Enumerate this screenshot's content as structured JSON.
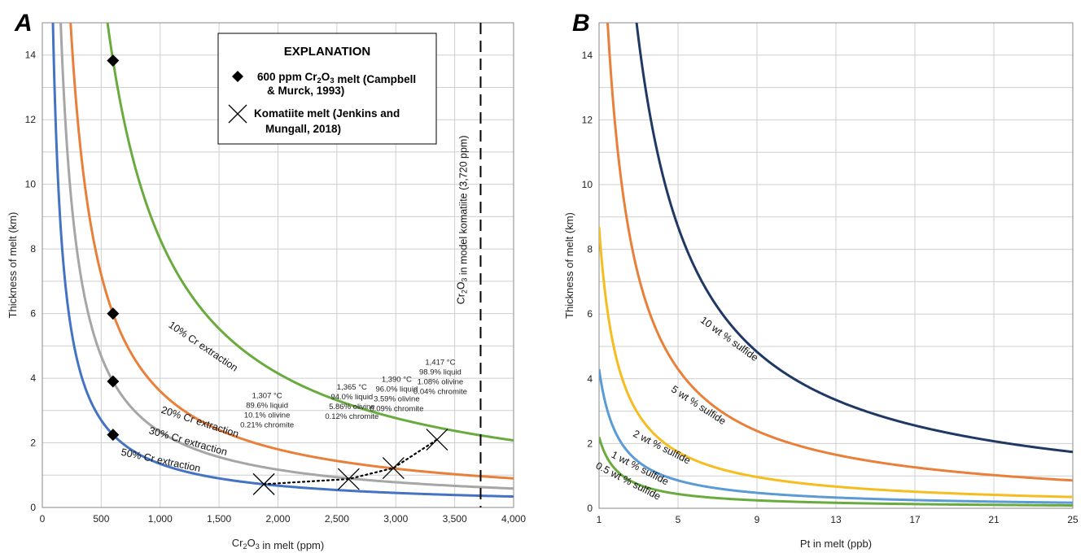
{
  "chart_data": [
    {
      "panel": "A",
      "type": "line",
      "xlabel": "Cr2O3 in melt (ppm)",
      "ylabel": "Thickness of melt (km)",
      "xlim": [
        0,
        4000
      ],
      "ylim": [
        0,
        15
      ],
      "x_ticks": [
        "0",
        "500",
        "1,000",
        "1,500",
        "2,000",
        "2,500",
        "3,000",
        "3,500",
        "4,000"
      ],
      "y_ticks": [
        "0",
        "2",
        "4",
        "6",
        "8",
        "10",
        "12",
        "14"
      ],
      "grid": true,
      "series": [
        {
          "name": "10% Cr extraction",
          "color": "#6aab3f",
          "k": 8300,
          "label": "10% Cr extraction"
        },
        {
          "name": "20% Cr extraction",
          "color": "#e9803a",
          "k": 3600,
          "label": "20% Cr extraction"
        },
        {
          "name": "30% Cr extraction",
          "color": "#a6a6a6",
          "k": 2340,
          "label": "30% Cr extraction"
        },
        {
          "name": "50% Cr extraction",
          "color": "#4473c4",
          "k": 1350,
          "label": "50% Cr extraction"
        }
      ],
      "campbell_points": [
        {
          "x": 600,
          "y": 13.83
        },
        {
          "x": 600,
          "y": 6.0
        },
        {
          "x": 600,
          "y": 3.9
        },
        {
          "x": 600,
          "y": 2.25
        }
      ],
      "komatiite_points": [
        {
          "x": 1880,
          "y": 0.72,
          "lines": [
            "1,307 °C",
            "89.6% liquid",
            "10.1% olivine",
            "0.21% chromite"
          ]
        },
        {
          "x": 2600,
          "y": 0.88,
          "lines": [
            "1,365 °C",
            "94.0% liquid",
            "5.86% olivine",
            "0.12% chromite"
          ]
        },
        {
          "x": 2980,
          "y": 1.22,
          "lines": [
            "1,390 °C",
            "96.0% liquid",
            "3.59% olivine",
            "0.09% chromite"
          ]
        },
        {
          "x": 3350,
          "y": 2.1,
          "lines": [
            "1,417 °C",
            "98.9% liquid",
            "1.08% olivine",
            "0.04% chromite"
          ]
        }
      ],
      "reference_line": {
        "x": 3720,
        "label": "Cr2O3 in model komatiite (3,720 ppm)"
      },
      "legend": {
        "title": "EXPLANATION",
        "placement": "top-right",
        "items": [
          {
            "symbol": "diamond",
            "lines": [
              "600 ppm Cr2O3 melt (Campbell",
              "& Murck, 1993)"
            ]
          },
          {
            "symbol": "cross",
            "lines": [
              "Komatiite melt (Jenkins and",
              "Mungall, 2018)"
            ]
          }
        ]
      }
    },
    {
      "panel": "B",
      "type": "line",
      "xlabel": "Pt in melt (ppb)",
      "ylabel": "Thickness of melt (km)",
      "xlim": [
        1,
        25
      ],
      "ylim": [
        0,
        15
      ],
      "x_ticks": [
        "1",
        "5",
        "9",
        "13",
        "17",
        "21",
        "25"
      ],
      "y_ticks": [
        "0",
        "2",
        "4",
        "6",
        "8",
        "10",
        "12",
        "14"
      ],
      "grid": true,
      "series": [
        {
          "name": "10 wt % sulfide",
          "color": "#1f3864",
          "k": 43.5,
          "label": "10 wt % sulfide"
        },
        {
          "name": "5 wt % sulfide",
          "color": "#e9803a",
          "k": 21.5,
          "label": "5 wt % sulfide"
        },
        {
          "name": "2 wt % sulfide",
          "color": "#f5bd1f",
          "k": 8.7,
          "label": "2 wt % sulfide"
        },
        {
          "name": "1 wt % sulfide",
          "color": "#5b9bd5",
          "k": 4.3,
          "label": "1 wt % sulfide"
        },
        {
          "name": "0.5 wt % sulfide",
          "color": "#6aab3f",
          "k": 2.2,
          "label": "0.5 wt % sulfide"
        }
      ]
    }
  ]
}
